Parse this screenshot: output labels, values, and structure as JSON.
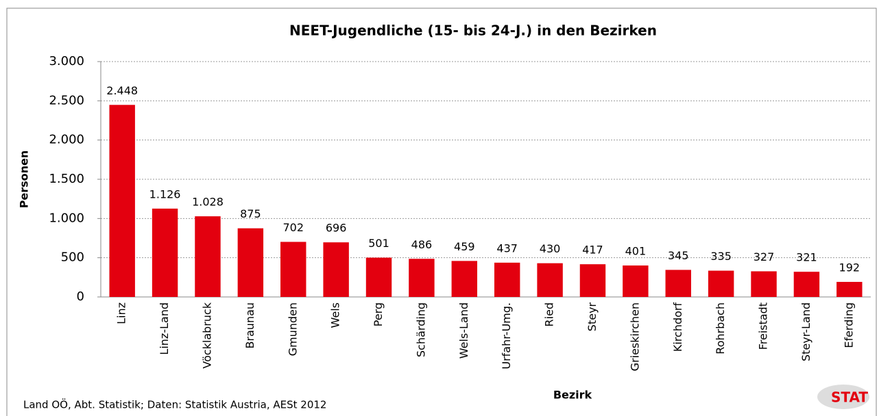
{
  "chart_data": {
    "type": "bar",
    "title": "NEET-Jugendliche (15- bis 24-J.) in den Bezirken",
    "y_label": "Personen",
    "x_label": "Bezirk",
    "source": "Land OÖ, Abt. Statistik; Daten: Statistik Austria, AESt 2012",
    "logo": "STAT",
    "categories": [
      "Linz",
      "Linz-Land",
      "Vöcklabruck",
      "Braunau",
      "Gmunden",
      "Wels",
      "Perg",
      "Schärding",
      "Wels-Land",
      "Urfahr-Umg.",
      "Ried",
      "Steyr",
      "Grieskirchen",
      "Kirchdorf",
      "Rohrbach",
      "Freistadt",
      "Steyr-Land",
      "Eferding"
    ],
    "values": [
      2448,
      1126,
      1028,
      875,
      702,
      696,
      501,
      486,
      459,
      437,
      430,
      417,
      401,
      345,
      335,
      327,
      321,
      192
    ],
    "value_labels": [
      "2.448",
      "1.126",
      "1.028",
      "875",
      "702",
      "696",
      "501",
      "486",
      "459",
      "437",
      "430",
      "417",
      "401",
      "345",
      "335",
      "327",
      "321",
      "192"
    ],
    "color": "#e3000f",
    "ylim": [
      0,
      3000
    ],
    "yticks": [
      0,
      500,
      {
        "value": 1000,
        "label": "1.000"
      },
      {
        "value": 1500,
        "label": "1.500"
      },
      {
        "value": 2000,
        "label": "2.000"
      },
      {
        "value": 2500,
        "label": "2.500"
      },
      {
        "value": 3000,
        "label": "3.000"
      }
    ],
    "grid": true
  }
}
